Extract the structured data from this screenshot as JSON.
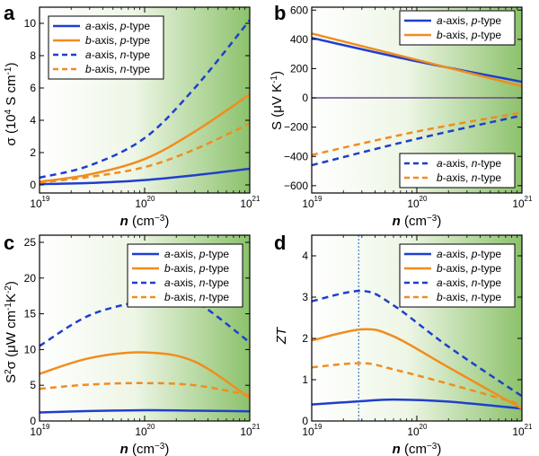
{
  "chart_data": [
    {
      "type": "line",
      "panel": "a",
      "xlabel": "n (cm⁻³)",
      "ylabel": "σ (10⁴ S cm⁻¹)",
      "xscale": "log",
      "xlim": [
        1e+19,
        1e+21
      ],
      "ylim": [
        -0.5,
        11
      ],
      "yticks": [
        0,
        2,
        4,
        6,
        8,
        10
      ],
      "background": "green gradient toward right",
      "legend_position": "top-left",
      "series": [
        {
          "name": "a-axis, p-type",
          "color": "#1f3fcc",
          "dash": "solid",
          "x": [
            1e+19,
            3e+19,
            1e+20,
            3e+20,
            1e+21
          ],
          "y": [
            0.05,
            0.12,
            0.3,
            0.6,
            1.0
          ]
        },
        {
          "name": "b-axis, p-type",
          "color": "#f28c1e",
          "dash": "solid",
          "x": [
            1e+19,
            3e+19,
            1e+20,
            3e+20,
            1e+21
          ],
          "y": [
            0.2,
            0.65,
            1.6,
            3.3,
            5.6
          ]
        },
        {
          "name": "a-axis, n-type",
          "color": "#1f3fcc",
          "dash": "dashed",
          "x": [
            1e+19,
            3e+19,
            1e+20,
            3e+20,
            1e+21
          ],
          "y": [
            0.45,
            1.2,
            2.9,
            6.0,
            10.2
          ]
        },
        {
          "name": "b-axis, n-type",
          "color": "#f28c1e",
          "dash": "dashed",
          "x": [
            1e+19,
            3e+19,
            1e+20,
            3e+20,
            1e+21
          ],
          "y": [
            0.15,
            0.5,
            1.1,
            2.2,
            3.8
          ]
        }
      ]
    },
    {
      "type": "line",
      "panel": "b",
      "xlabel": "n (cm⁻³)",
      "ylabel": "S (μV K⁻¹)",
      "xscale": "log",
      "xlim": [
        1e+19,
        1e+21
      ],
      "ylim": [
        -650,
        620
      ],
      "yticks": [
        -600,
        -400,
        -200,
        0,
        200,
        400,
        600
      ],
      "zero_line": true,
      "background": "green gradient toward right",
      "legend_position": "top-right, split: p-type top-right, n-type bottom-right",
      "series": [
        {
          "name": "a-axis, p-type",
          "color": "#1f3fcc",
          "dash": "solid",
          "x": [
            1e+19,
            1e+20,
            1e+21
          ],
          "y": [
            410,
            250,
            110
          ]
        },
        {
          "name": "b-axis, p-type",
          "color": "#f28c1e",
          "dash": "solid",
          "x": [
            1e+19,
            1e+20,
            1e+21
          ],
          "y": [
            440,
            260,
            80
          ]
        },
        {
          "name": "a-axis, n-type",
          "color": "#1f3fcc",
          "dash": "dashed",
          "x": [
            1e+19,
            1e+20,
            1e+21
          ],
          "y": [
            -460,
            -280,
            -120
          ]
        },
        {
          "name": "b-axis, n-type",
          "color": "#f28c1e",
          "dash": "dashed",
          "x": [
            1e+19,
            1e+20,
            1e+21
          ],
          "y": [
            -390,
            -230,
            -100
          ]
        }
      ]
    },
    {
      "type": "line",
      "panel": "c",
      "xlabel": "n (cm⁻³)",
      "ylabel": "S²σ (μW cm⁻¹K⁻²)",
      "xscale": "log",
      "xlim": [
        1e+19,
        1e+21
      ],
      "ylim": [
        0,
        26
      ],
      "yticks": [
        0,
        5,
        10,
        15,
        20,
        25
      ],
      "background": "green gradient toward right",
      "legend_position": "top-right",
      "series": [
        {
          "name": "a-axis, p-type",
          "color": "#1f3fcc",
          "dash": "solid",
          "x": [
            1e+19,
            3e+19,
            1e+20,
            3e+20,
            1e+21
          ],
          "y": [
            1.2,
            1.4,
            1.5,
            1.45,
            1.35
          ]
        },
        {
          "name": "b-axis, p-type",
          "color": "#f28c1e",
          "dash": "solid",
          "x": [
            1e+19,
            3e+19,
            1e+20,
            3e+20,
            1e+21
          ],
          "y": [
            6.6,
            8.8,
            9.6,
            8.3,
            3.2
          ]
        },
        {
          "name": "a-axis, n-type",
          "color": "#1f3fcc",
          "dash": "dashed",
          "x": [
            1e+19,
            3e+19,
            1e+20,
            1.6e+20,
            3e+20,
            1e+21
          ],
          "y": [
            10.5,
            14.8,
            16.9,
            17.3,
            16.8,
            11.0
          ]
        },
        {
          "name": "b-axis, n-type",
          "color": "#f28c1e",
          "dash": "dashed",
          "x": [
            1e+19,
            3e+19,
            1e+20,
            3e+20,
            1e+21
          ],
          "y": [
            4.5,
            5.1,
            5.3,
            5.0,
            3.6
          ]
        }
      ]
    },
    {
      "type": "line",
      "panel": "d",
      "xlabel": "n (cm⁻³)",
      "ylabel": "ZT",
      "xscale": "log",
      "xlim": [
        1e+19,
        1e+21
      ],
      "ylim": [
        0,
        4.5
      ],
      "yticks": [
        0,
        1,
        2,
        3,
        4
      ],
      "vertical_marker_x": 2.8e+19,
      "background": "green gradient toward right",
      "legend_position": "top-right",
      "series": [
        {
          "name": "a-axis, p-type",
          "color": "#1f3fcc",
          "dash": "solid",
          "x": [
            1e+19,
            3e+19,
            6e+19,
            2e+20,
            1e+21
          ],
          "y": [
            0.4,
            0.48,
            0.52,
            0.47,
            0.3
          ]
        },
        {
          "name": "b-axis, p-type",
          "color": "#f28c1e",
          "dash": "solid",
          "x": [
            1e+19,
            3e+19,
            6e+19,
            2e+20,
            1e+21
          ],
          "y": [
            1.95,
            2.22,
            2.05,
            1.3,
            0.3
          ]
        },
        {
          "name": "a-axis, n-type",
          "color": "#1f3fcc",
          "dash": "dashed",
          "x": [
            1e+19,
            3e+19,
            6e+19,
            2e+20,
            1e+21
          ],
          "y": [
            2.9,
            3.15,
            2.8,
            1.8,
            0.6
          ]
        },
        {
          "name": "b-axis, n-type",
          "color": "#f28c1e",
          "dash": "dashed",
          "x": [
            1e+19,
            3e+19,
            6e+19,
            2e+20,
            1e+21
          ],
          "y": [
            1.3,
            1.4,
            1.25,
            0.9,
            0.4
          ]
        }
      ]
    }
  ],
  "labels": {
    "panel_letters": [
      "a",
      "b",
      "c",
      "d"
    ],
    "x_tick_base": "10",
    "x_tick_exponents": [
      "19",
      "20",
      "21"
    ],
    "x_axis_label_n": "n",
    "x_axis_label_unit_open": "(cm",
    "x_axis_label_unit_exp": "−3",
    "x_axis_label_unit_close": ")",
    "ylabel_a_main": "σ (10",
    "ylabel_a_exp1": "4",
    "ylabel_a_mid": " S cm",
    "ylabel_a_exp2": "-1",
    "ylabel_a_close": ")",
    "ylabel_b_main": "S (μV K",
    "ylabel_b_exp": "-1",
    "ylabel_b_close": ")",
    "ylabel_c_S": "S",
    "ylabel_c_exp2": "2",
    "ylabel_c_mid": "σ (μW cm",
    "ylabel_c_exp1": "-1",
    "ylabel_c_K": "K",
    "ylabel_c_exp3": "-2",
    "ylabel_c_close": ")",
    "ylabel_d": "ZT"
  }
}
